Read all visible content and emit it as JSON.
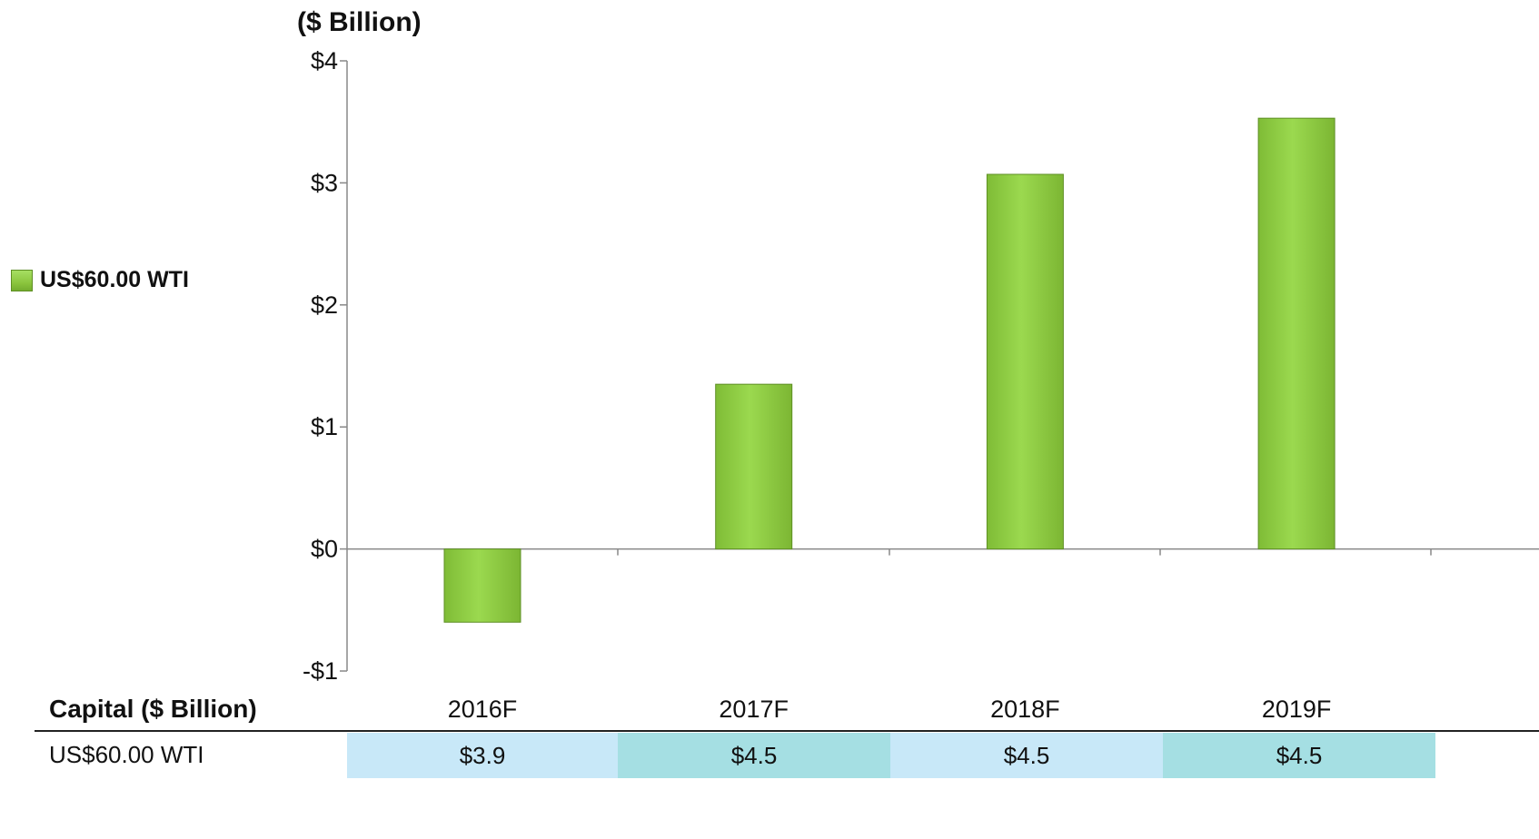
{
  "unit_label": "($ Billion)",
  "colors": {
    "bar": "#8cc63f",
    "bar_edge": "#5e8f24",
    "axis": "#888888",
    "cell_light": "#c8e8f8",
    "cell_dark": "#a5dfe3"
  },
  "chart_data": {
    "type": "bar",
    "title": "",
    "xlabel": "",
    "ylabel": "($ Billion)",
    "categories": [
      "2016F",
      "2017F",
      "2018F",
      "2019F"
    ],
    "series": [
      {
        "name": "US$60.00 WTI",
        "values": [
          -0.6,
          1.35,
          3.07,
          3.53
        ]
      }
    ],
    "ylim": [
      -1,
      4
    ],
    "y_ticks": [
      -1,
      0,
      1,
      2,
      3,
      4
    ],
    "y_tick_labels": [
      "-$1",
      "$0",
      "$1",
      "$2",
      "$3",
      "$4"
    ],
    "grid": false,
    "legend_position": "left"
  },
  "legend": {
    "label": "US$60.00 WTI"
  },
  "table": {
    "header": "Capital ($ Billion)",
    "row_label": "US$60.00 WTI",
    "values": [
      "$3.9",
      "$4.5",
      "$4.5",
      "$4.5"
    ]
  }
}
